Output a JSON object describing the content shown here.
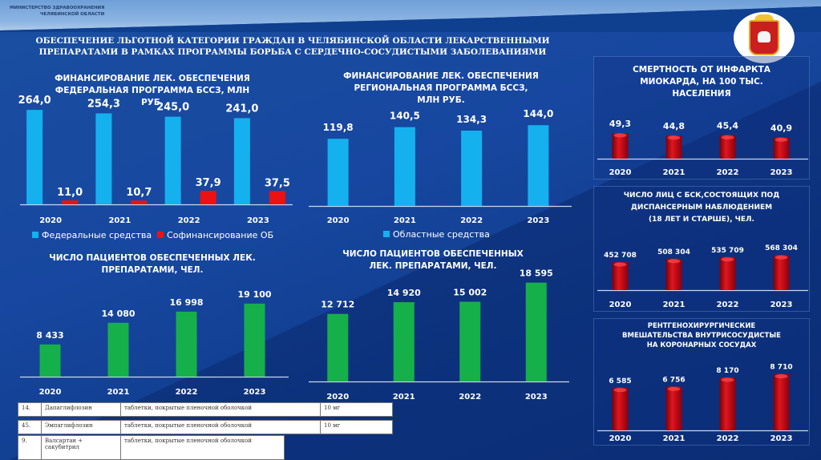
{
  "header": {
    "ministry_line1": "МИНИСТЕРСТВО ЗДРАВООХРАНЕНИЯ",
    "ministry_line2": "ЧЕЛЯБИНСКОЙ ОБЛАСТИ",
    "title_line1": "ОБЕСПЕЧЕНИЕ ЛЬГОТНОЙ КАТЕГОРИИ ГРАЖДАН В ЧЕЛЯБИНСКОЙ ОБЛАСТИ ЛЕКАРСТВЕННЫМИ",
    "title_line2": "ПРЕПАРАТАМИ В РАМКАХ ПРОГРАММЫ БОРЬБА С СЕРДЕЧНО-СОСУДИСТЫМИ ЗАБОЛЕВАНИЯМИ",
    "emblem": "chelyabinsk-coat-of-arms-icon"
  },
  "colors": {
    "federal": "#14b1ee",
    "cofinancing": "#ee1111",
    "regional": "#14b1ee",
    "patients": "#16b04a",
    "red_bar": "#c8101a"
  },
  "chart_data": [
    {
      "id": "federal",
      "type": "bar",
      "title_line1": "ФИНАНСИРОВАНИЕ ЛЕК. ОБЕСПЕЧЕНИЯ",
      "title_line2": "ФЕДЕРАЛЬНАЯ ПРОГРАММА БССЗ, МЛН РУБ.",
      "categories": [
        "2020",
        "2021",
        "2022",
        "2023"
      ],
      "series": [
        {
          "name": "Федеральные средства",
          "values": [
            264.0,
            254.3,
            245.0,
            241.0
          ],
          "labels": [
            "264,0",
            "254,3",
            "245,0",
            "241,0"
          ]
        },
        {
          "name": "Софинансирование ОБ",
          "values": [
            11.0,
            10.7,
            37.9,
            37.5
          ],
          "labels": [
            "11,0",
            "10,7",
            "37,9",
            "37,5"
          ]
        }
      ],
      "ylim": [
        0,
        280
      ],
      "legend": "bottom"
    },
    {
      "id": "regional",
      "type": "bar",
      "title_line1": "ФИНАНСИРОВАНИЕ ЛЕК. ОБЕСПЕЧЕНИЯ",
      "title_line2": "РЕГИОНАЛЬНАЯ ПРОГРАММА БССЗ,",
      "title_line3": "МЛН РУБ.",
      "categories": [
        "2020",
        "2021",
        "2022",
        "2023"
      ],
      "series": [
        {
          "name": "Областные средства",
          "values": [
            119.8,
            140.5,
            134.3,
            144.0
          ],
          "labels": [
            "119,8",
            "140,5",
            "134,3",
            "144,0"
          ]
        }
      ],
      "ylim": [
        0,
        160
      ],
      "legend": "bottom"
    },
    {
      "id": "patients-federal",
      "type": "bar",
      "title_line1": "ЧИСЛО ПАЦИЕНТОВ ОБЕСПЕЧЕННЫХ ЛЕК.",
      "title_line2": "ПРЕПАРАТАМИ, ЧЕЛ.",
      "categories": [
        "2020",
        "2021",
        "2022",
        "2023"
      ],
      "series": [
        {
          "name": "Пациенты",
          "values": [
            8433,
            14080,
            16998,
            19100
          ],
          "labels": [
            "8 433",
            "14 080",
            "16 998",
            "19 100"
          ]
        }
      ],
      "ylim": [
        0,
        22000
      ]
    },
    {
      "id": "patients-regional",
      "type": "bar",
      "title_line1": "ЧИСЛО ПАЦИЕНТОВ ОБЕСПЕЧЕННЫХ",
      "title_line2": "ЛЕК. ПРЕПАРАТАМИ, ЧЕЛ.",
      "categories": [
        "2020",
        "2021",
        "2022",
        "2023"
      ],
      "series": [
        {
          "name": "Пациенты",
          "values": [
            12712,
            14920,
            15002,
            18595
          ],
          "labels": [
            "12 712",
            "14 920",
            "15 002",
            "18 595"
          ]
        }
      ],
      "ylim": [
        0,
        19000
      ]
    },
    {
      "id": "mortality",
      "type": "bar",
      "title_line1": "СМЕРТНОСТЬ ОТ ИНФАРКТА",
      "title_line2": "МИОКАРДА, НА 100 ТЫС.",
      "title_line3": "НАСЕЛЕНИЯ",
      "categories": [
        "2020",
        "2021",
        "2022",
        "2023"
      ],
      "series": [
        {
          "name": "Смертность",
          "values": [
            49.3,
            44.8,
            45.4,
            40.9
          ],
          "labels": [
            "49,3",
            "44,8",
            "45,4",
            "40,9"
          ]
        }
      ],
      "ylim": [
        0,
        120
      ]
    },
    {
      "id": "dispensary",
      "type": "bar",
      "title_line1": "ЧИСЛО ЛИЦ С БСК,СОСТОЯЩИХ ПОД",
      "title_line2": "ДИСПАНСЕРНЫМ НАБЛЮДЕНИЕМ",
      "title_line3": "(18 ЛЕТ И СТАРШЕ), ЧЕЛ.",
      "categories": [
        "2020",
        "2021",
        "2022",
        "2023"
      ],
      "series": [
        {
          "name": "Число лиц",
          "values": [
            452708,
            508304,
            535709,
            568304
          ],
          "labels": [
            "452 708",
            "508 304",
            "535 709",
            "568 304"
          ]
        }
      ],
      "ylim": [
        0,
        1000000
      ]
    },
    {
      "id": "xray-surgery",
      "type": "bar",
      "title_line1": "РЕНТГЕНОХИРУРГИЧЕСКИЕ",
      "title_line2": "ВМЕШАТЕЛЬСТВА ВНУТРИСОСУДИСТЫЕ",
      "title_line3": "НА КОРОНАРНЫХ СОСУДАХ",
      "categories": [
        "2020",
        "2021",
        "2022",
        "2023"
      ],
      "series": [
        {
          "name": "Вмешательства",
          "values": [
            6585,
            6756,
            8170,
            8710
          ],
          "labels": [
            "6 585",
            "6 756",
            "8 170",
            "8 710"
          ]
        }
      ],
      "ylim": [
        0,
        12000
      ]
    }
  ],
  "document_rows": [
    {
      "num": "14.",
      "name": "Дапаглифлозин",
      "form": "таблетки, покрытые пленочной оболочкой",
      "dose": "10 мг"
    },
    {
      "num": "45.",
      "name": "Эмпаглифлозин",
      "form": "таблетки, покрытые пленочной оболочкой",
      "dose": "10 мг"
    },
    {
      "num": "9.",
      "name": "Валсартан + сакубитрил",
      "form": "таблетки, покрытые пленочной оболочкой",
      "dose": ""
    }
  ]
}
